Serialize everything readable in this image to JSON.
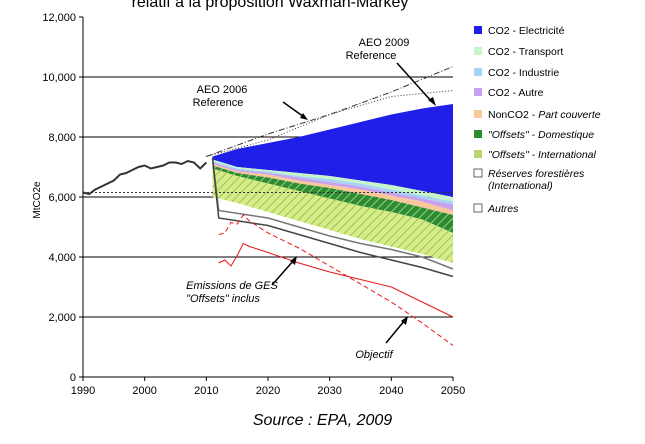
{
  "chart_data": {
    "type": "area",
    "title": "relatif à la proposition Waxman-Markey",
    "ylabel": "MtCO2e",
    "xlabel": "",
    "xlim": [
      1990,
      2050
    ],
    "ylim": [
      0,
      12000
    ],
    "x_ticks": [
      "1990",
      "2000",
      "2010",
      "2020",
      "2030",
      "2040",
      "2050"
    ],
    "y_ticks": [
      "0",
      "2,000",
      "4,000",
      "6,000",
      "8,000",
      "10,000",
      "12,000"
    ],
    "grid": "horizontal",
    "legend_position": "right",
    "legend": [
      {
        "prefix": "CO2 - ",
        "label": "Electricité",
        "italic": false,
        "color": "#1f1fe8"
      },
      {
        "prefix": "CO2 - ",
        "label": "Transport",
        "italic": false,
        "color": "#c8f5c8"
      },
      {
        "prefix": "CO2 - ",
        "label": "Industrie",
        "italic": false,
        "color": "#a8d4f4"
      },
      {
        "prefix": "CO2 - ",
        "label": "Autre",
        "italic": false,
        "color": "#c8a0f0"
      },
      {
        "prefix": "NonCO2 - ",
        "label": "Part couverte",
        "italic": true,
        "color": "#f8c89a"
      },
      {
        "prefix": "",
        "label": "\"Offsets\" - Domestique",
        "italic": true,
        "color": "#2e8b2e"
      },
      {
        "prefix": "",
        "label": "\"Offsets\" - International",
        "italic": true,
        "color": "#b6d96c"
      },
      {
        "prefix": "",
        "label": "Réserves forestières",
        "label2": "(International)",
        "italic": true,
        "color": "#ffffff"
      },
      {
        "prefix": "",
        "label": "Autres",
        "italic": true,
        "color": "#ffffff"
      }
    ],
    "historical": {
      "x": [
        1990,
        1991,
        1992,
        1993,
        1994,
        1995,
        1996,
        1997,
        1998,
        1999,
        2000,
        2001,
        2002,
        2003,
        2004,
        2005,
        2006,
        2007,
        2008,
        2009,
        2010
      ],
      "y": [
        6150,
        6100,
        6250,
        6350,
        6450,
        6550,
        6750,
        6800,
        6900,
        7000,
        7050,
        6950,
        7000,
        7050,
        7150,
        7150,
        7100,
        7200,
        7150,
        6950,
        7150
      ]
    },
    "aeo_2006": {
      "x": [
        2010,
        2020,
        2030,
        2040,
        2050
      ],
      "y": [
        7350,
        7900,
        8750,
        9350,
        9550
      ]
    },
    "aeo_2009": {
      "x": [
        2010,
        2020,
        2030,
        2040,
        2050
      ],
      "y": [
        7350,
        8100,
        8750,
        9500,
        10350
      ]
    },
    "stack_years": [
      2011,
      2015,
      2020,
      2025,
      2030,
      2035,
      2040,
      2045,
      2050
    ],
    "stack_bottoms": [
      {
        "name": "Electricité",
        "values": [
          7250,
          7000,
          6900,
          6800,
          6700,
          6550,
          6400,
          6200,
          6000
        ]
      },
      {
        "name": "Transport",
        "values": [
          7200,
          6950,
          6850,
          6700,
          6600,
          6450,
          6250,
          6050,
          5850
        ]
      },
      {
        "name": "Industrie",
        "values": [
          7150,
          6900,
          6800,
          6650,
          6500,
          6350,
          6150,
          5950,
          5750
        ]
      },
      {
        "name": "Autre",
        "values": [
          7100,
          6850,
          6750,
          6550,
          6400,
          6250,
          6050,
          5850,
          5550
        ]
      },
      {
        "name": "Part couverte",
        "values": [
          7050,
          6800,
          6650,
          6450,
          6300,
          6100,
          5900,
          5650,
          5400
        ]
      },
      {
        "name": "Domestique",
        "values": [
          6950,
          6700,
          6450,
          6200,
          5950,
          5700,
          5500,
          5250,
          4800
        ]
      },
      {
        "name": "International",
        "values": [
          6000,
          5800,
          5500,
          5200,
          4900,
          4600,
          4350,
          4100,
          3800
        ]
      }
    ],
    "stack_top": [
      7350,
      7600,
      7800,
      8000,
      8250,
      8500,
      8750,
      8950,
      9100
    ],
    "reference_line": {
      "x": [
        1990,
        2050
      ],
      "y": [
        6150,
        6150
      ]
    },
    "outline_lines": [
      {
        "x": [
          2011,
          2012,
          2020,
          2025,
          2030,
          2035,
          2040,
          2045,
          2050
        ],
        "y": [
          7300,
          5550,
          5300,
          5000,
          4700,
          4450,
          4250,
          4000,
          3600
        ]
      },
      {
        "x": [
          2011,
          2012,
          2020,
          2025,
          2030,
          2035,
          2040,
          2045,
          2050
        ],
        "y": [
          7300,
          5300,
          5050,
          4750,
          4450,
          4150,
          3900,
          3650,
          3350
        ]
      }
    ],
    "emissions_with_offsets": {
      "x": [
        2012,
        2013,
        2014,
        2015,
        2016,
        2017,
        2020,
        2025,
        2030,
        2035,
        2040,
        2045,
        2050
      ],
      "y": [
        3800,
        3900,
        3700,
        4050,
        4450,
        4350,
        4150,
        3800,
        3500,
        3250,
        3000,
        2500,
        2000
      ]
    },
    "objectif": {
      "x": [
        2012,
        2013,
        2014,
        2015,
        2016,
        2017,
        2020,
        2025,
        2030,
        2035,
        2040,
        2045,
        2050
      ],
      "y": [
        4750,
        4800,
        5150,
        5100,
        5400,
        5200,
        4800,
        4300,
        3700,
        3100,
        2500,
        1800,
        1050
      ]
    },
    "annotations": {
      "aeo_2009": [
        "AEO 2009",
        "Reference"
      ],
      "aeo_2006": [
        "AEO 2006",
        "Reference"
      ],
      "emissions": [
        "Emissions de GES",
        "\"Offsets\" inclus"
      ],
      "objectif": "Objectif"
    }
  },
  "source": "Source : EPA, 2009"
}
